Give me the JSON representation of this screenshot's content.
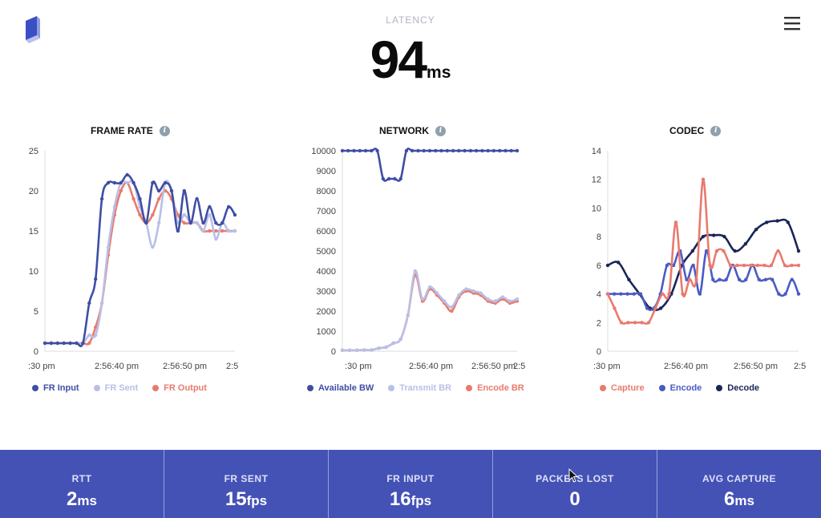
{
  "header": {
    "latency_label": "LATENCY",
    "latency_value": "94",
    "latency_unit": "ms"
  },
  "icons": {
    "logo": "cube-logo-icon",
    "menu": "hamburger-menu-icon",
    "info": "info-icon"
  },
  "colors": {
    "fr_input": "#3f4ea3",
    "fr_sent": "#b9bfe6",
    "fr_output": "#e87a6e",
    "available_bw": "#3f4ea3",
    "transmit_br": "#b9bfe6",
    "encode_br": "#e87a6e",
    "capture": "#e87a6e",
    "encode": "#4a5bc4",
    "decode": "#1a2558",
    "stats_bg": "#4452b6"
  },
  "chart_data": [
    {
      "id": "frame_rate",
      "type": "line",
      "title": "FRAME RATE",
      "x_ticks": [
        ":30 pm",
        "2:56:40 pm",
        "2:56:50 pm",
        "2:5"
      ],
      "ylim": [
        0,
        25
      ],
      "y_ticks": [
        0,
        5,
        10,
        15,
        20,
        25
      ],
      "series": [
        {
          "name": "FR Input",
          "color": "#3f4ea3",
          "values": [
            1,
            1,
            1,
            1,
            1,
            1,
            1,
            6,
            9,
            19,
            21,
            21,
            21,
            22,
            21,
            19,
            16,
            21,
            20,
            21,
            20,
            15,
            20,
            16,
            19,
            16,
            18,
            16,
            16,
            18,
            17
          ]
        },
        {
          "name": "FR Sent",
          "color": "#b9bfe6",
          "values": [
            1,
            1,
            1,
            1,
            1,
            1,
            1,
            2,
            2,
            6,
            13,
            18,
            21,
            21,
            21,
            18,
            16,
            13,
            16,
            21,
            20,
            16,
            17,
            16,
            16,
            15,
            17,
            14,
            16,
            15,
            15
          ]
        },
        {
          "name": "FR Output",
          "color": "#e87a6e",
          "values": [
            1,
            1,
            1,
            1,
            1,
            1,
            1,
            1,
            3,
            6,
            12,
            17,
            20,
            21,
            19,
            17,
            16,
            17,
            19,
            20,
            19,
            17,
            16,
            16,
            16,
            15,
            15,
            15,
            15,
            15,
            15
          ]
        }
      ]
    },
    {
      "id": "network",
      "type": "line",
      "title": "NETWORK",
      "x_ticks": [
        ":30 pm",
        "2:56:40 pm",
        "2:56:50 pm",
        "2:5"
      ],
      "ylim": [
        0,
        10000
      ],
      "y_ticks": [
        0,
        1000,
        2000,
        3000,
        4000,
        5000,
        6000,
        7000,
        8000,
        9000,
        10000
      ],
      "series": [
        {
          "name": "Available BW",
          "color": "#3f4ea3",
          "values": [
            10000,
            10000,
            10000,
            10000,
            10000,
            10000,
            10000,
            8600,
            8600,
            8600,
            8600,
            10000,
            10000,
            10000,
            10000,
            10000,
            10000,
            10000,
            10000,
            10000,
            10000,
            10000,
            10000,
            10000,
            10000,
            10000,
            10000,
            10000,
            10000,
            10000,
            10000
          ]
        },
        {
          "name": "Transmit BR",
          "color": "#b9bfe6",
          "values": [
            50,
            50,
            50,
            60,
            60,
            150,
            200,
            400,
            600,
            1800,
            4000,
            2600,
            3200,
            2900,
            2500,
            2200,
            2800,
            3100,
            3000,
            2900,
            2600,
            2500,
            2700,
            2500,
            2600
          ]
        },
        {
          "name": "Encode BR",
          "color": "#e87a6e",
          "values": [
            50,
            50,
            50,
            60,
            60,
            150,
            200,
            400,
            600,
            1800,
            3800,
            2500,
            3100,
            2800,
            2400,
            2000,
            2700,
            3000,
            2900,
            2800,
            2500,
            2400,
            2600,
            2400,
            2500
          ]
        }
      ]
    },
    {
      "id": "codec",
      "type": "line",
      "title": "CODEC",
      "x_ticks": [
        ":30 pm",
        "2:56:40 pm",
        "2:56:50 pm",
        "2:5"
      ],
      "ylim": [
        0,
        14
      ],
      "y_ticks": [
        0,
        2,
        4,
        6,
        8,
        10,
        12,
        14
      ],
      "series": [
        {
          "name": "Capture",
          "color": "#e87a6e",
          "values": [
            4,
            3,
            2,
            2,
            2,
            2,
            2,
            3,
            4,
            4,
            9,
            4,
            5,
            5,
            12,
            6,
            7,
            7,
            6,
            6,
            6,
            6,
            6,
            6,
            6,
            7,
            6,
            6,
            6
          ]
        },
        {
          "name": "Encode",
          "color": "#4a5bc4",
          "values": [
            4,
            4,
            4,
            4,
            4,
            4,
            3,
            3,
            4,
            6,
            6,
            7,
            5,
            6,
            4,
            7,
            5,
            5,
            5,
            6,
            5,
            5,
            6,
            5,
            5,
            5,
            4,
            4,
            5,
            4
          ]
        },
        {
          "name": "Decode",
          "color": "#1a2558",
          "values": [
            6,
            6.2,
            5,
            4,
            3,
            3,
            4,
            6,
            7,
            8,
            8.1,
            8,
            7,
            7.5,
            8.5,
            9,
            9.1,
            9,
            7
          ]
        }
      ]
    }
  ],
  "legends": [
    [
      "FR Input",
      "FR Sent",
      "FR Output"
    ],
    [
      "Available BW",
      "Transmit BR",
      "Encode BR"
    ],
    [
      "Capture",
      "Encode",
      "Decode"
    ]
  ],
  "stats": [
    {
      "label": "RTT",
      "value": "2",
      "unit": "ms"
    },
    {
      "label": "FR SENT",
      "value": "15",
      "unit": "fps"
    },
    {
      "label": "FR INPUT",
      "value": "16",
      "unit": "fps"
    },
    {
      "label": "PACKETS LOST",
      "value": "0",
      "unit": ""
    },
    {
      "label": "AVG CAPTURE",
      "value": "6",
      "unit": "ms"
    }
  ]
}
